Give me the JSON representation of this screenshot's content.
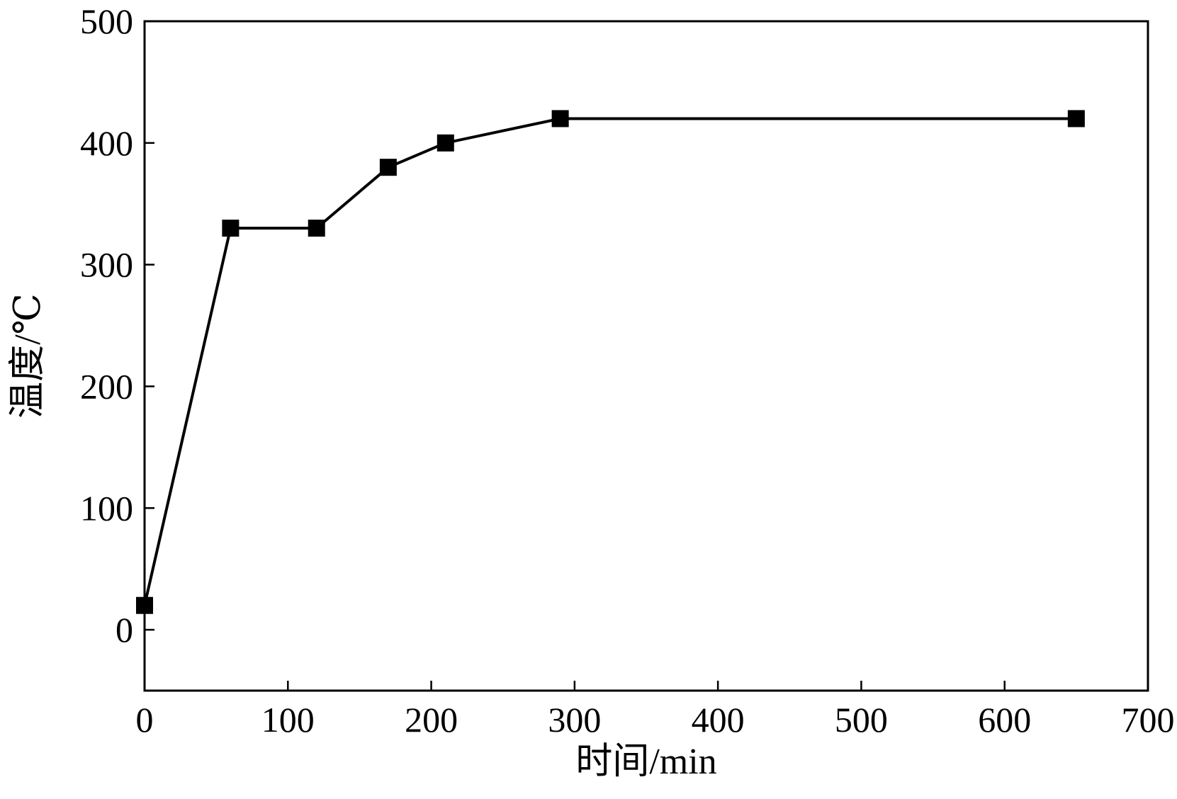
{
  "chart_data": {
    "type": "line",
    "title": "",
    "xlabel": "时间/min",
    "ylabel": "温度/℃",
    "xlim": [
      0,
      700
    ],
    "ylim": [
      -50,
      500
    ],
    "xticks": [
      0,
      100,
      200,
      300,
      400,
      500,
      600,
      700
    ],
    "yticks": [
      0,
      100,
      200,
      300,
      400,
      500
    ],
    "grid": false,
    "marker": "square",
    "line_color": "#000000",
    "marker_color": "#000000",
    "series": [
      {
        "x": [
          0,
          60,
          120,
          170,
          210,
          290,
          650
        ],
        "y": [
          20,
          330,
          330,
          380,
          400,
          420,
          420
        ]
      }
    ]
  }
}
